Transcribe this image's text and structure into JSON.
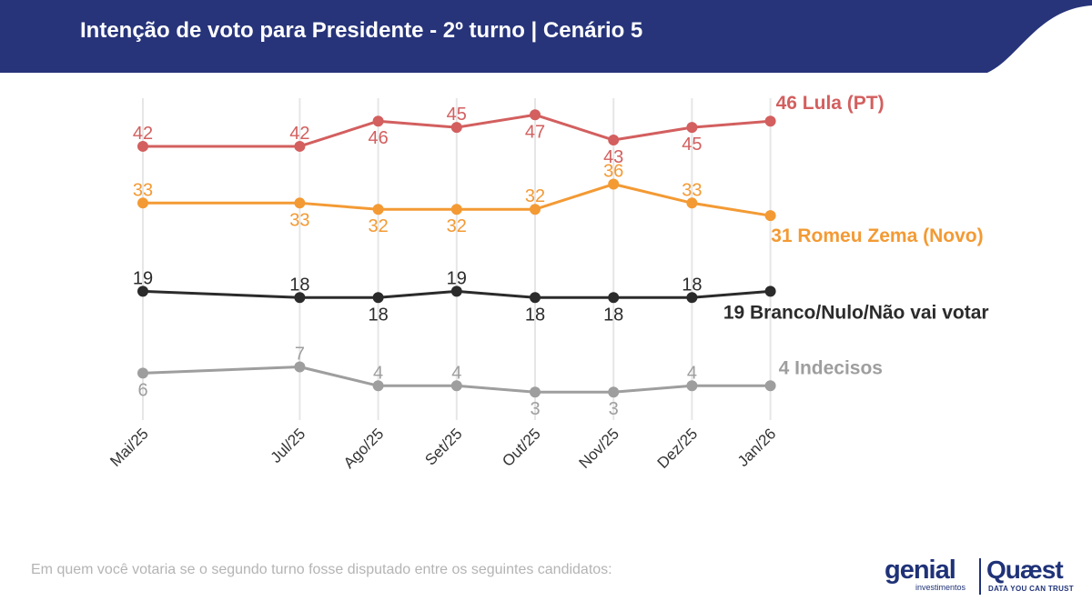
{
  "header": {
    "title": "Intenção de voto para Presidente - 2º turno | Cenário 5",
    "background_color": "#27347a"
  },
  "footer": {
    "note": "Em quem você votaria se o segundo turno fosse disputado entre os seguintes candidatos:"
  },
  "logos": {
    "genial": "genial",
    "genial_sub": "investimentos",
    "quaest": "Quæst",
    "quaest_sub": "DATA YOU CAN TRUST"
  },
  "chart_data": {
    "type": "line",
    "categories": [
      "Mai/25",
      "Jul/25",
      "Ago/25",
      "Set/25",
      "Out/25",
      "Nov/25",
      "Dez/25",
      "Jan/26"
    ],
    "x_positions": [
      0,
      2,
      3,
      4,
      5,
      6,
      7,
      8
    ],
    "grid": true,
    "series": [
      {
        "name": "Lula (PT)",
        "end_label": "46 Lula (PT)",
        "color": "#d35f5f",
        "values": [
          42,
          42,
          46,
          45,
          47,
          43,
          45,
          46
        ],
        "label_positions": [
          "above",
          "above",
          "below",
          "above",
          "below",
          "below",
          "below",
          "none"
        ]
      },
      {
        "name": "Romeu Zema (Novo)",
        "end_label": "31 Romeu Zema (Novo)",
        "color": "#f39a34",
        "values": [
          33,
          33,
          32,
          32,
          32,
          36,
          33,
          31
        ],
        "label_positions": [
          "above",
          "below",
          "below",
          "below",
          "above",
          "above",
          "above",
          "none"
        ]
      },
      {
        "name": "Branco/Nulo/Não vai votar",
        "end_label": "19 Branco/Nulo/Não vai votar",
        "color": "#2b2b2b",
        "values": [
          19,
          18,
          18,
          19,
          18,
          18,
          18,
          19
        ],
        "label_positions": [
          "above",
          "above",
          "below",
          "above",
          "below",
          "below",
          "above",
          "none"
        ]
      },
      {
        "name": "Indecisos",
        "end_label": "4 Indecisos",
        "color": "#9e9e9e",
        "values": [
          6,
          7,
          4,
          4,
          3,
          3,
          4,
          4
        ],
        "label_positions": [
          "below",
          "above",
          "above",
          "above",
          "below",
          "below",
          "above",
          "none"
        ]
      }
    ]
  }
}
